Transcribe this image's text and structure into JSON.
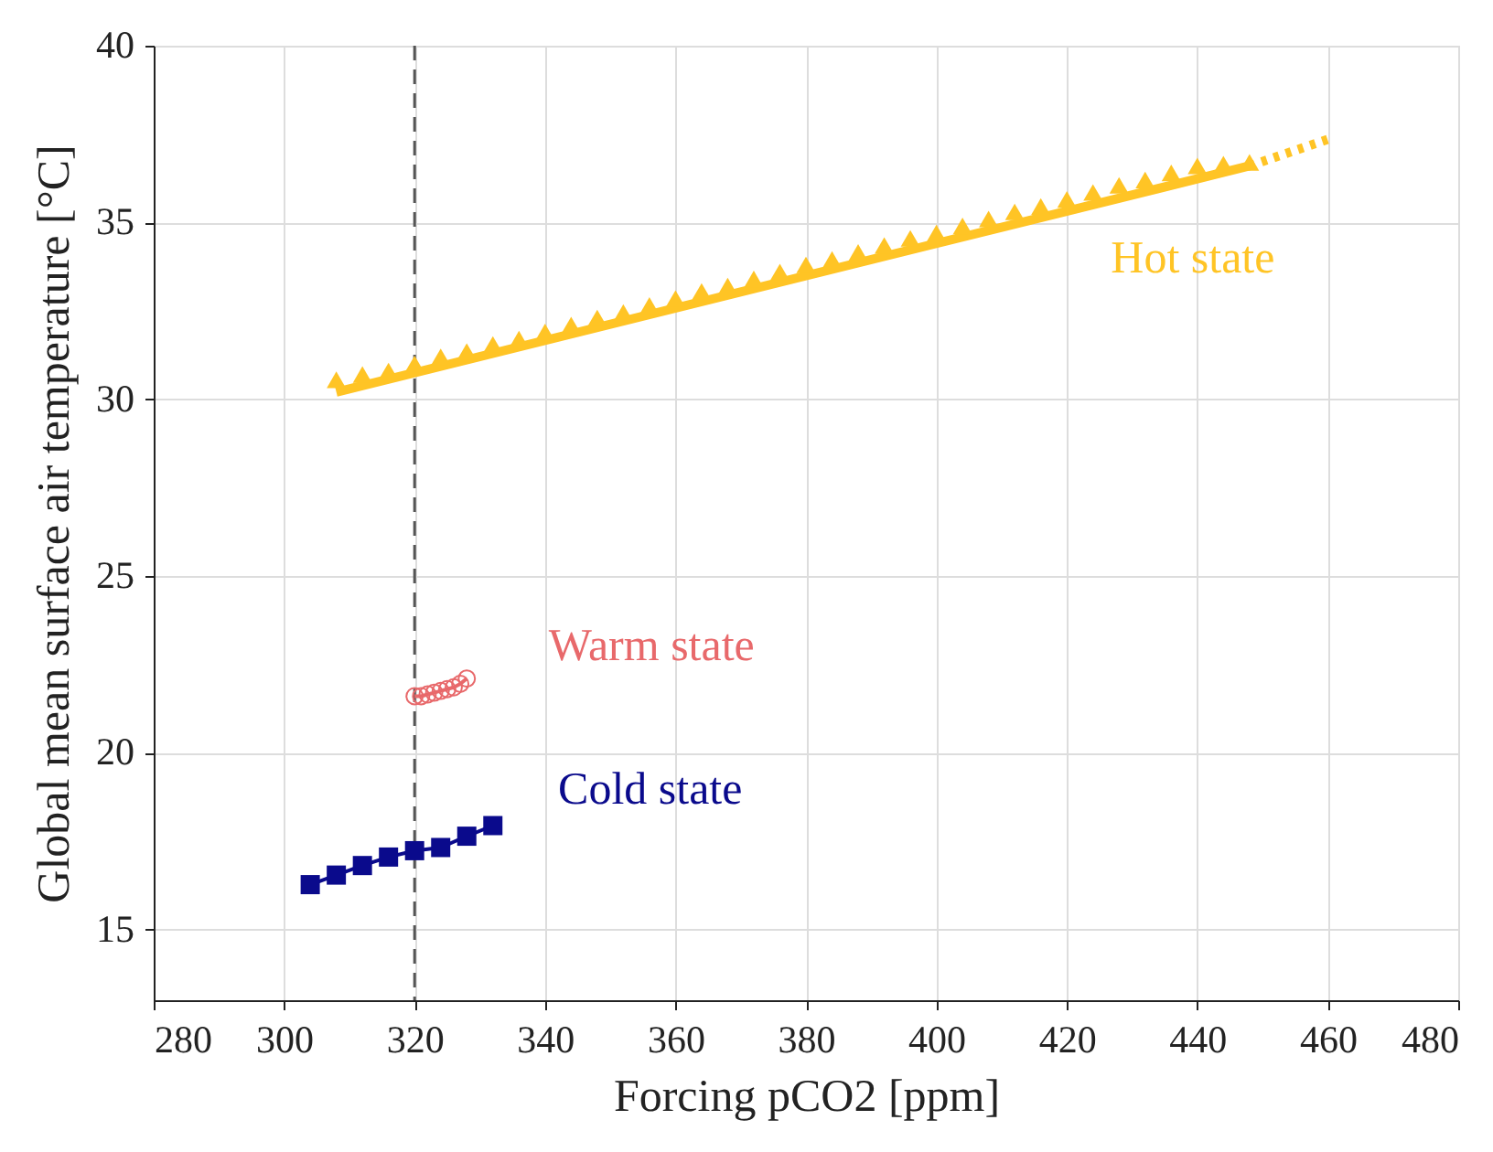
{
  "chart_data": {
    "type": "line",
    "xlabel": "Forcing pCO2 [ppm]",
    "ylabel": "Global mean surface air temperature [°C]",
    "xlim": [
      280,
      480
    ],
    "xticks": [
      280,
      300,
      320,
      340,
      360,
      380,
      400,
      420,
      440,
      460,
      480
    ],
    "ylim": [
      13,
      40
    ],
    "yticks": [
      15,
      20,
      25,
      30,
      35,
      40
    ],
    "grid": true,
    "ref_lines": [
      {
        "axis": "x",
        "value": 320,
        "color": "#555555",
        "line_style": "dashed"
      }
    ],
    "series": [
      {
        "color": "#ffc425",
        "line_style": "solid",
        "marker": "none",
        "x": [
          308,
          448
        ],
        "values": [
          30.2,
          36.6
        ]
      },
      {
        "color": "#ffc425",
        "line_style": "dotted",
        "marker": "none",
        "x": [
          448,
          460
        ],
        "values": [
          36.6,
          37.35
        ]
      },
      {
        "type": "scatter",
        "name": "Hot state",
        "color": "#ffc425",
        "marker": "triangle",
        "x": [
          308,
          312,
          316,
          320,
          324,
          328,
          332,
          336,
          340,
          344,
          348,
          352,
          356,
          360,
          364,
          368,
          372,
          376,
          380,
          384,
          388,
          392,
          396,
          400,
          404,
          408,
          412,
          416,
          420,
          424,
          428,
          432,
          436,
          440,
          444,
          448
        ],
        "values": [
          30.55,
          30.7,
          30.8,
          31.0,
          31.2,
          31.35,
          31.55,
          31.7,
          31.9,
          32.1,
          32.3,
          32.45,
          32.65,
          32.85,
          33.05,
          33.2,
          33.4,
          33.6,
          33.8,
          33.95,
          34.15,
          34.35,
          34.55,
          34.7,
          34.9,
          35.1,
          35.3,
          35.45,
          35.65,
          35.85,
          36.05,
          36.2,
          36.4,
          36.6,
          36.65,
          36.7
        ]
      },
      {
        "name": "Warm state",
        "color": "#e8696b",
        "line_style": "solid",
        "marker": "circle",
        "x": [
          320,
          321,
          322,
          323,
          324,
          325,
          326,
          327,
          328
        ],
        "values": [
          21.6,
          21.6,
          21.65,
          21.7,
          21.75,
          21.8,
          21.85,
          21.95,
          22.1
        ]
      },
      {
        "name": "Cold state",
        "color": "#0a0a8c",
        "line_style": "solid",
        "marker": "square",
        "x": [
          304,
          308,
          312,
          316,
          320,
          324,
          328,
          332
        ],
        "values": [
          16.27,
          16.54,
          16.81,
          17.05,
          17.23,
          17.32,
          17.64,
          17.94
        ]
      }
    ]
  }
}
